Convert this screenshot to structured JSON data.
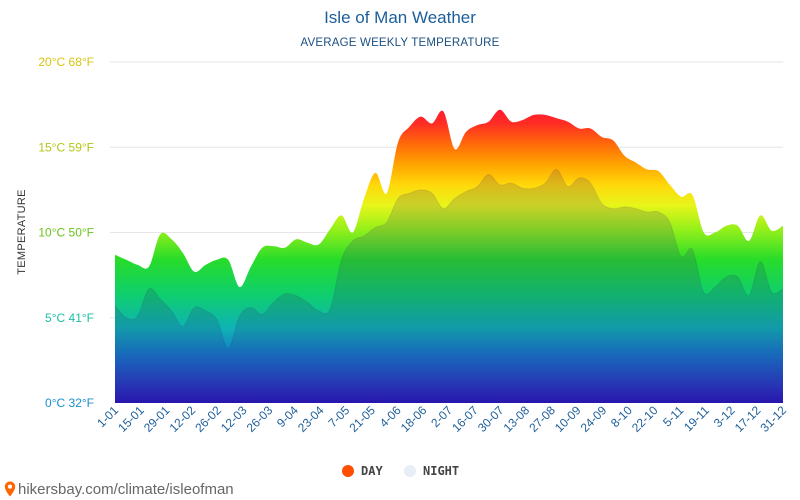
{
  "chart_data": {
    "type": "area",
    "title": "Isle of Man Weather",
    "subtitle": "AVERAGE WEEKLY TEMPERATURE",
    "ylabel": "TEMPERATURE",
    "xlabel": "",
    "ylim": [
      0,
      20
    ],
    "y_ticks": [
      {
        "value": 0,
        "label": "0°C 32°F",
        "color": "#1a8fd1"
      },
      {
        "value": 5,
        "label": "5°C 41°F",
        "color": "#1bbfa5"
      },
      {
        "value": 10,
        "label": "10°C 50°F",
        "color": "#6cc31c"
      },
      {
        "value": 15,
        "label": "15°C 59°F",
        "color": "#b6c515"
      },
      {
        "value": 20,
        "label": "20°C 68°F",
        "color": "#d8c40f"
      }
    ],
    "x_tick_labels": [
      "1-01",
      "15-01",
      "29-01",
      "12-02",
      "26-02",
      "12-03",
      "26-03",
      "9-04",
      "23-04",
      "7-05",
      "21-05",
      "4-06",
      "18-06",
      "2-07",
      "16-07",
      "30-07",
      "13-08",
      "27-08",
      "10-09",
      "24-09",
      "8-10",
      "22-10",
      "5-11",
      "19-11",
      "3-12",
      "17-12",
      "31-12"
    ],
    "series": [
      {
        "name": "DAY",
        "color": "#ff4e00",
        "values": [
          8.7,
          8.4,
          8.1,
          8.0,
          9.9,
          9.6,
          8.8,
          7.7,
          8.1,
          8.4,
          8.4,
          6.8,
          8.0,
          9.1,
          9.2,
          9.1,
          9.6,
          9.4,
          9.3,
          10.2,
          11.0,
          10.0,
          12.0,
          13.5,
          12.3,
          15.3,
          16.2,
          16.8,
          16.4,
          17.1,
          14.9,
          15.9,
          16.3,
          16.5,
          17.2,
          16.5,
          16.6,
          16.9,
          16.9,
          16.7,
          16.5,
          16.1,
          16.1,
          15.6,
          15.4,
          14.5,
          14.1,
          13.7,
          13.6,
          12.8,
          12.1,
          12.2,
          10.0,
          10.0,
          10.4,
          10.4,
          9.5,
          11.0,
          10.1,
          10.4
        ]
      },
      {
        "name": "NIGHT",
        "color": "#e8eef5",
        "values": [
          5.7,
          5.0,
          5.1,
          6.7,
          6.1,
          5.4,
          4.5,
          5.6,
          5.4,
          4.9,
          3.2,
          5.1,
          5.6,
          5.2,
          5.9,
          6.4,
          6.3,
          5.9,
          5.4,
          5.5,
          8.4,
          9.5,
          9.8,
          10.3,
          10.6,
          12.0,
          12.3,
          12.5,
          12.3,
          11.4,
          12.0,
          12.4,
          12.7,
          13.4,
          12.8,
          12.9,
          12.6,
          12.6,
          12.9,
          13.7,
          12.7,
          13.2,
          12.9,
          11.7,
          11.4,
          11.5,
          11.4,
          11.2,
          11.2,
          10.6,
          8.6,
          9.0,
          6.5,
          6.8,
          7.4,
          7.4,
          6.3,
          8.3,
          6.5,
          6.7
        ]
      }
    ],
    "legend": [
      {
        "label": "DAY",
        "color": "#ff4e00"
      },
      {
        "label": "NIGHT",
        "color": "#e8eef5"
      }
    ],
    "legend_position": "bottom",
    "grid": true
  },
  "footer": {
    "source": "hikersbay.com/climate/isleofman",
    "icon": "map-pin-icon",
    "icon_color": "#ff6600"
  }
}
